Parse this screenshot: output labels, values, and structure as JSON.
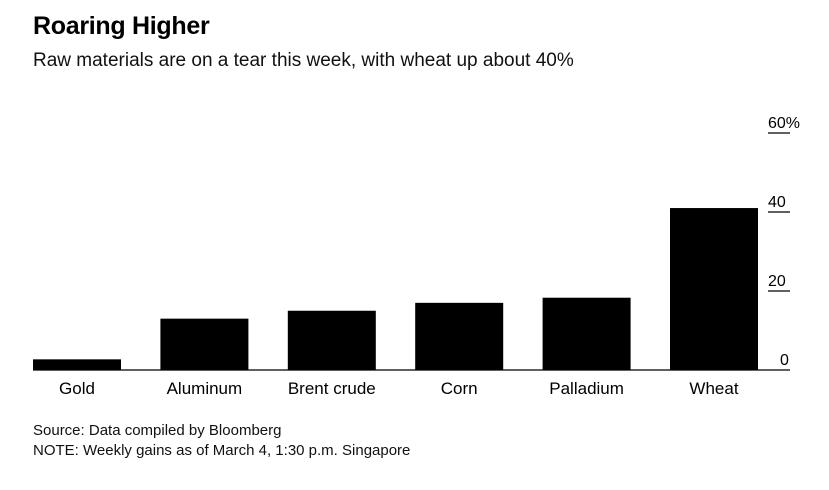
{
  "header": {
    "title": "Roaring Higher",
    "subtitle": "Raw materials are on a tear this week, with wheat up about 40%"
  },
  "footer": {
    "source": "Source: Data compiled by Bloomberg",
    "note": "NOTE: Weekly gains as of March 4, 1:30 p.m. Singapore"
  },
  "chart_data": {
    "type": "bar",
    "categories": [
      "Gold",
      "Aluminum",
      "Brent crude",
      "Corn",
      "Palladium",
      "Wheat"
    ],
    "values": [
      2.7,
      13,
      15,
      17,
      18.3,
      41
    ],
    "ylim": [
      0,
      60
    ],
    "yticks": [
      0,
      20,
      40,
      60
    ],
    "ytick_labels": [
      "0",
      "20",
      "40",
      "60%"
    ],
    "y_axis_side": "right",
    "grid": false,
    "bar_color": "#000000"
  }
}
